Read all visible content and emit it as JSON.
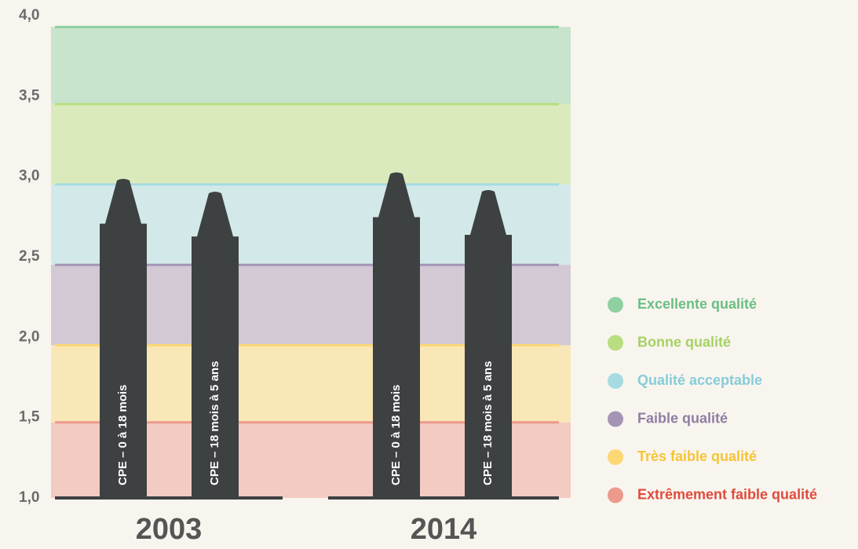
{
  "chart_data": {
    "type": "crayon-bar",
    "categories": [
      "2003",
      "2014"
    ],
    "series": [
      {
        "name": "CPE – 0 à 18 mois",
        "color": "#3d4142",
        "values": [
          2.99,
          3.03
        ]
      },
      {
        "name": "CPE – 18 mois à 5 ans",
        "color": "#3d4142",
        "values": [
          2.91,
          2.92
        ]
      }
    ],
    "ylim": [
      1.0,
      4.0
    ],
    "yticks": [
      {
        "value": 1.0,
        "label": "1,0"
      },
      {
        "value": 1.5,
        "label": "1,5"
      },
      {
        "value": 2.0,
        "label": "2,0"
      },
      {
        "value": 2.5,
        "label": "2,5"
      },
      {
        "value": 3.0,
        "label": "3,0"
      },
      {
        "value": 3.5,
        "label": "3,5"
      },
      {
        "value": 4.0,
        "label": "4,0"
      }
    ],
    "bands": [
      {
        "name": "Excellente qualité",
        "color": "#8fd0a2",
        "text_color": "#6abf82",
        "range": [
          3.45,
          3.93
        ]
      },
      {
        "name": "Bonne qualité",
        "color": "#b9de80",
        "text_color": "#a6d164",
        "range": [
          2.95,
          3.45
        ]
      },
      {
        "name": "Qualité acceptable",
        "color": "#a6dbe2",
        "text_color": "#86cdd8",
        "range": [
          2.45,
          2.95
        ]
      },
      {
        "name": "Faible qualité",
        "color": "#a595b5",
        "text_color": "#8f7ea3",
        "range": [
          1.95,
          2.45
        ]
      },
      {
        "name": "Très faible qualité",
        "color": "#fdd774",
        "text_color": "#f6c435",
        "range": [
          1.47,
          1.95
        ]
      },
      {
        "name": "Extrêmement faible qualité",
        "color": "#eb9a8c",
        "text_color": "#e04a3c",
        "range": [
          1.0,
          1.47
        ]
      }
    ]
  }
}
